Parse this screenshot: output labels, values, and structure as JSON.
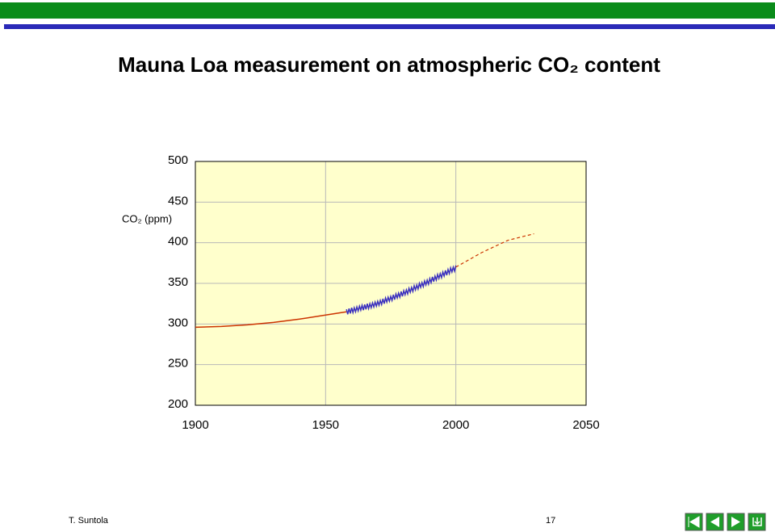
{
  "chart_data": {
    "type": "line",
    "title": "Mauna Loa measurement on atmospheric CO₂ content",
    "y_label": "CO₂ (ppm)",
    "xlim": [
      1900,
      2050
    ],
    "xticks": [
      1900,
      1950,
      2000,
      2050
    ],
    "ylim": [
      200,
      500
    ],
    "yticks": [
      200,
      250,
      300,
      350,
      400,
      450,
      500
    ],
    "grid": true,
    "background": "#ffffcc",
    "series": [
      {
        "color": "#cc3300",
        "style": "solid",
        "x": [
          1900,
          1910,
          1920,
          1930,
          1940,
          1950,
          1958
        ],
        "values": [
          296,
          297,
          299,
          302,
          306,
          311,
          315
        ]
      },
      {
        "color": "#3a2fbf",
        "style": "solid",
        "x": [
          1958,
          1958.5,
          1959,
          1959.5,
          1960,
          1960.5,
          1961,
          1961.5,
          1962,
          1962.5,
          1963,
          1963.5,
          1964,
          1964.5,
          1965,
          1965.5,
          1966,
          1966.5,
          1967,
          1967.5,
          1968,
          1968.5,
          1969,
          1969.5,
          1970,
          1970.5,
          1971,
          1971.5,
          1972,
          1972.5,
          1973,
          1973.5,
          1974,
          1974.5,
          1975,
          1975.5,
          1976,
          1976.5,
          1977,
          1977.5,
          1978,
          1978.5,
          1979,
          1979.5,
          1980,
          1980.5,
          1981,
          1981.5,
          1982,
          1982.5,
          1983,
          1983.5,
          1984,
          1984.5,
          1985,
          1985.5,
          1986,
          1986.5,
          1987,
          1987.5,
          1988,
          1988.5,
          1989,
          1989.5,
          1990,
          1990.5,
          1991,
          1991.5,
          1992,
          1992.5,
          1993,
          1993.5,
          1994,
          1994.5,
          1995,
          1995.5,
          1996,
          1996.5,
          1997,
          1997.5,
          1998,
          1998.5,
          1999,
          1999.5,
          2000
        ],
        "values": [
          318,
          312,
          319,
          313,
          320,
          314,
          320,
          315,
          321,
          316,
          322,
          317,
          323,
          317,
          324,
          318,
          325,
          319,
          325,
          320,
          326,
          321,
          327,
          322,
          328,
          323,
          329,
          324,
          331,
          325,
          332,
          327,
          333,
          328,
          334,
          329,
          336,
          330,
          337,
          332,
          338,
          333,
          340,
          334,
          341,
          336,
          342,
          337,
          344,
          339,
          345,
          340,
          347,
          342,
          348,
          343,
          350,
          345,
          351,
          346,
          353,
          348,
          354,
          349,
          356,
          351,
          358,
          352,
          359,
          354,
          361,
          356,
          362,
          357,
          364,
          359,
          366,
          360,
          367,
          362,
          369,
          364,
          370,
          365,
          372
        ]
      },
      {
        "color": "#cc3300",
        "style": "dashed",
        "x": [
          2000,
          2010,
          2020,
          2030
        ],
        "values": [
          370,
          388,
          403,
          411
        ]
      }
    ]
  },
  "footer": {
    "author": "T. Suntola",
    "page": "17"
  }
}
